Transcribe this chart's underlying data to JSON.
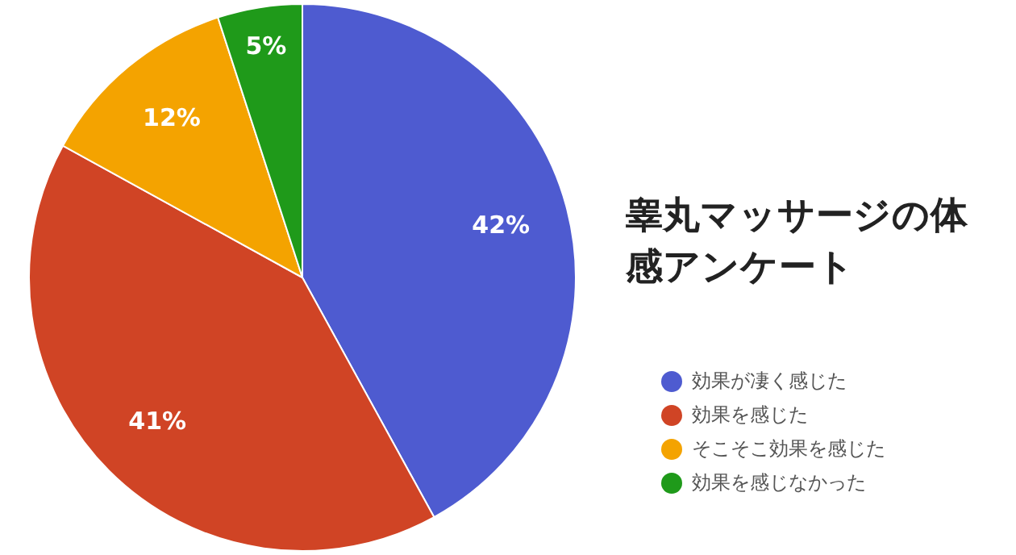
{
  "chart_data": {
    "type": "pie",
    "title": "睾丸マッサージの体感アンケート",
    "categories": [
      "効果が凄く感じた",
      "効果を感じた",
      "そこそこ効果を感じた",
      "効果を感じなかった"
    ],
    "values": [
      42,
      41,
      12,
      5
    ],
    "colors": [
      "#4e5bd0",
      "#d04425",
      "#f4a300",
      "#1f9a1a"
    ],
    "value_labels": [
      "42%",
      "41%",
      "12%",
      "5%"
    ],
    "legend": "right"
  }
}
